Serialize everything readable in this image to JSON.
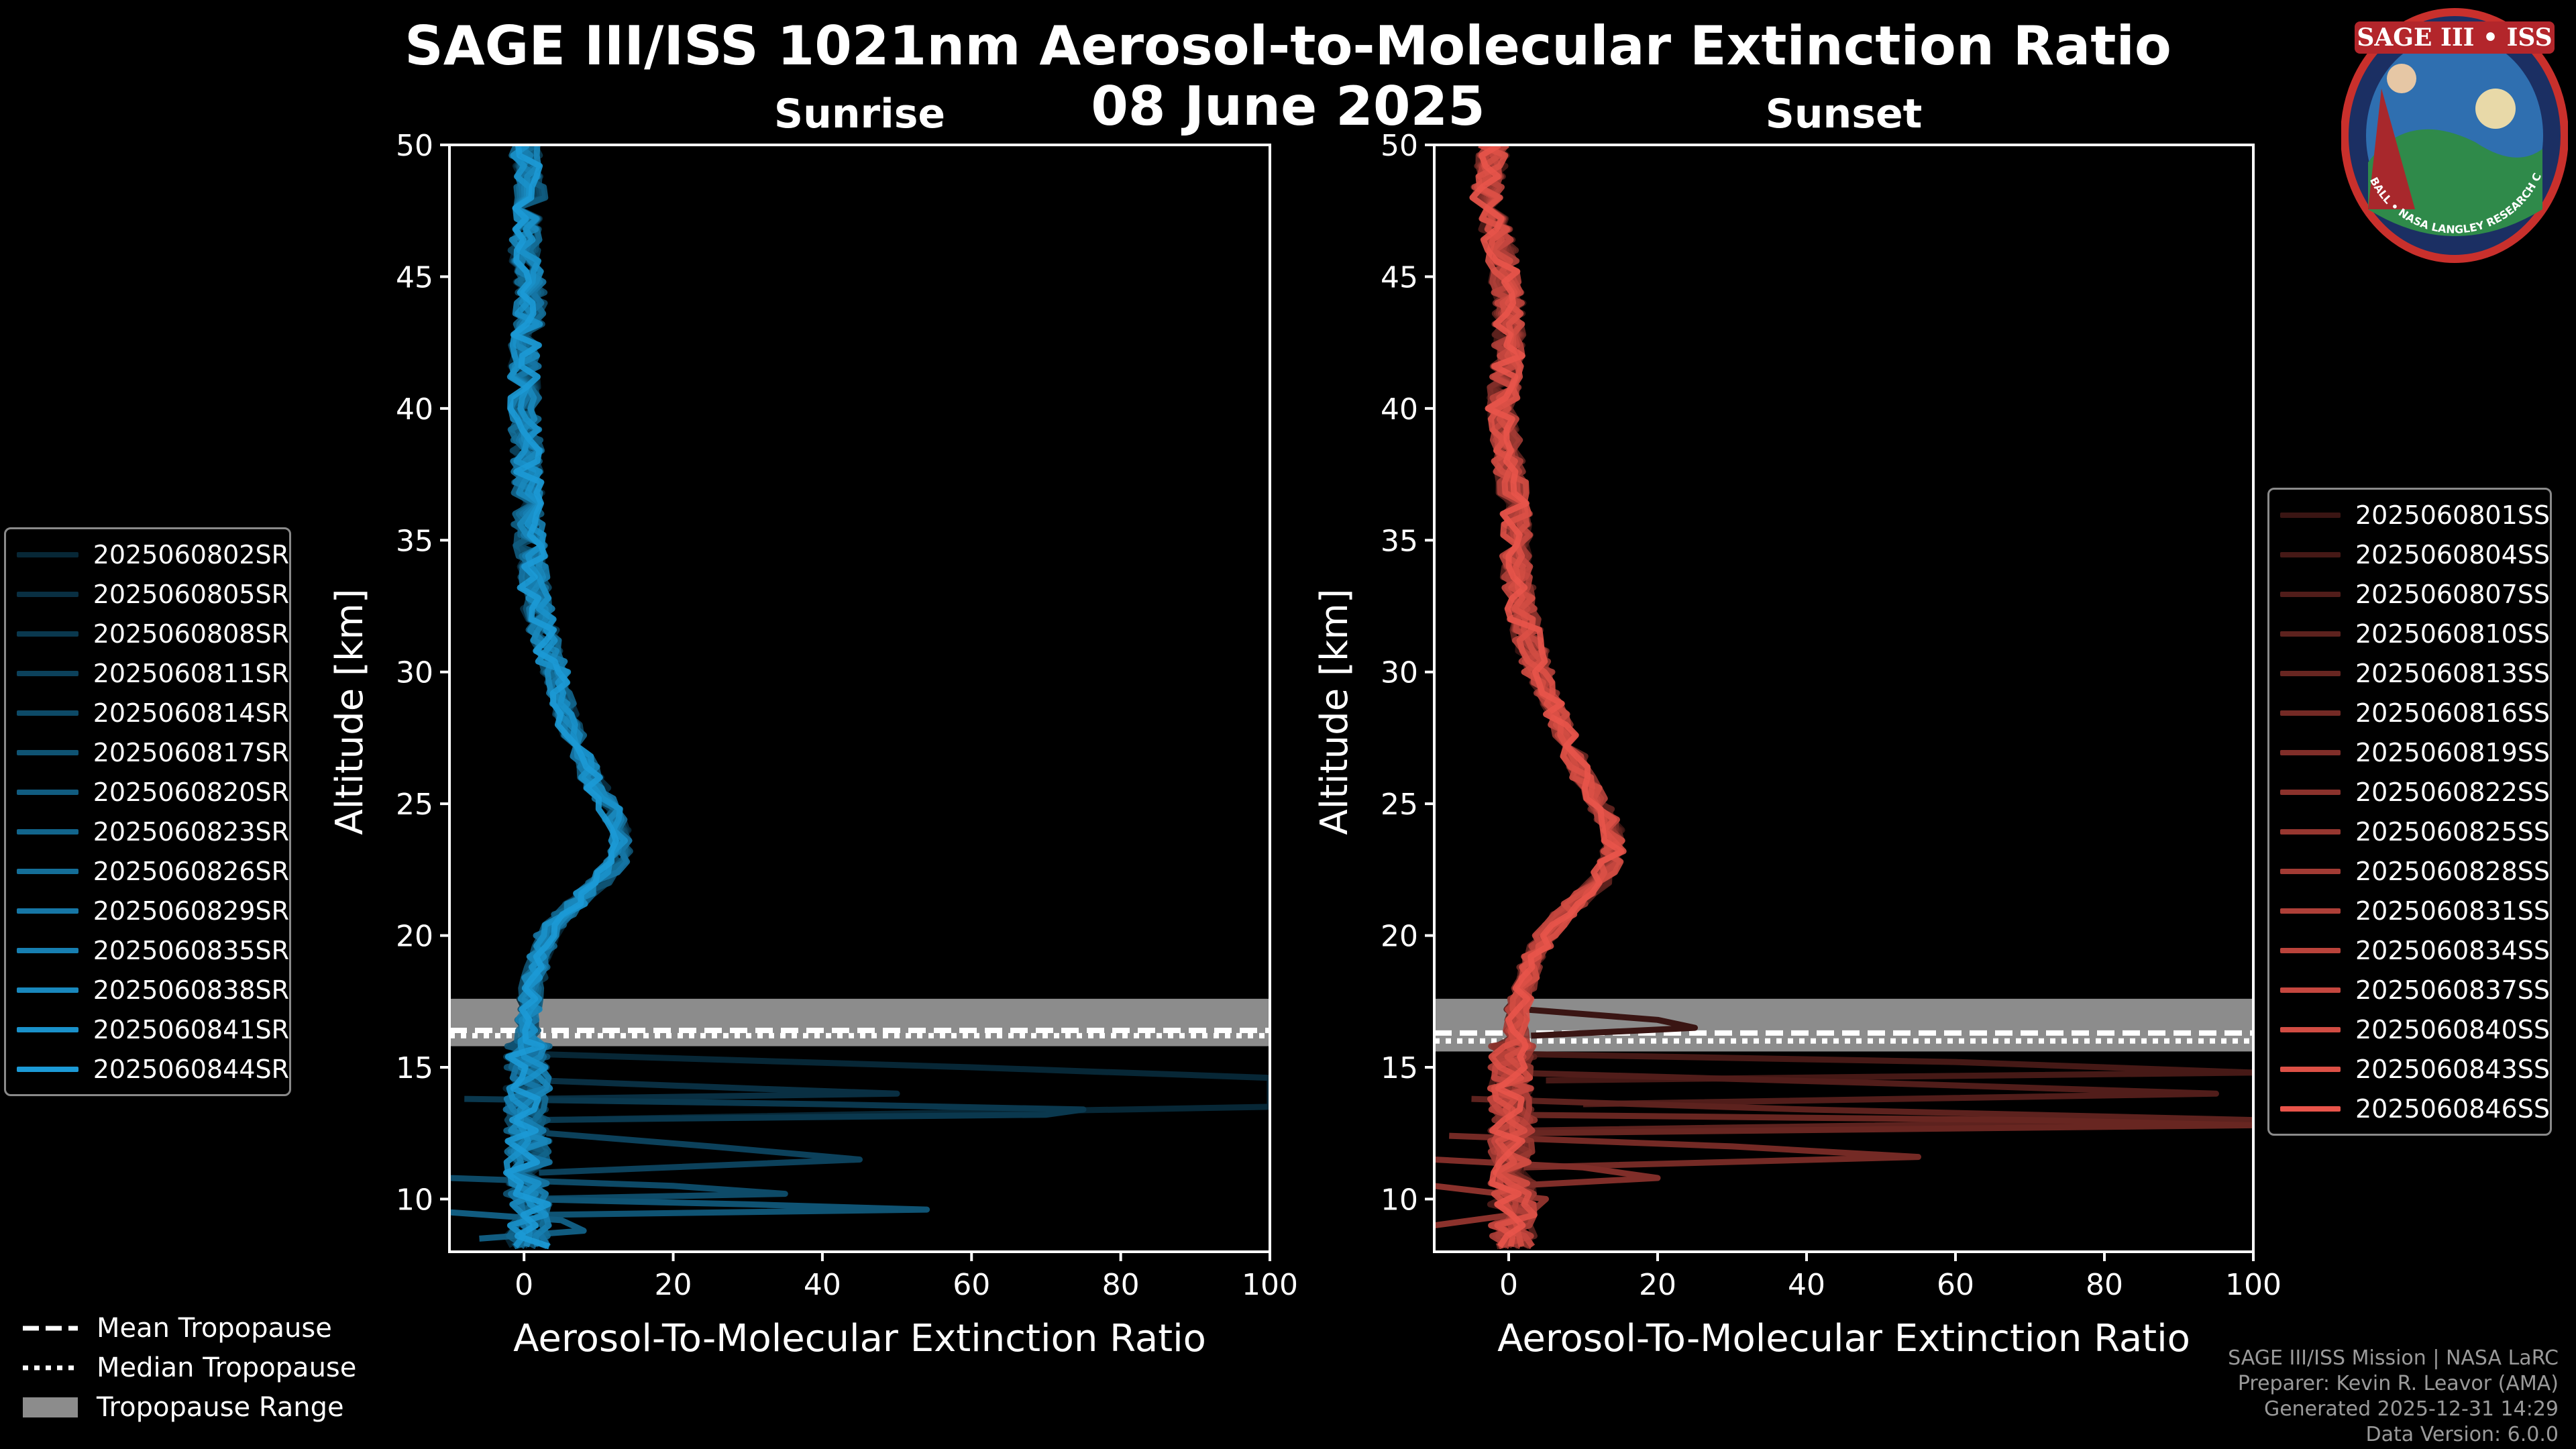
{
  "header": {
    "title": "SAGE III/ISS 1021nm Aerosol-to-Molecular Extinction Ratio",
    "date": "08 June 2025"
  },
  "colors": {
    "sunrise": "#1c9ad6",
    "sunset": "#e8544a",
    "tropopause_band": "#8c8c8c"
  },
  "chart_data": [
    {
      "type": "line",
      "name": "Sunrise",
      "title": "Sunrise",
      "xlabel": "Aerosol-To-Molecular Extinction Ratio",
      "ylabel": "Altitude [km]",
      "xlim": [
        -10,
        100
      ],
      "ylim": [
        8,
        50
      ],
      "xticks": [
        0,
        20,
        40,
        60,
        80,
        100
      ],
      "yticks": [
        10,
        15,
        20,
        25,
        30,
        35,
        40,
        45,
        50
      ],
      "tropopause": {
        "mean": 16.4,
        "median": 16.2,
        "range": [
          15.8,
          17.6
        ]
      },
      "series": [
        {
          "name": "2025060802SR"
        },
        {
          "name": "2025060805SR"
        },
        {
          "name": "2025060808SR"
        },
        {
          "name": "2025060811SR"
        },
        {
          "name": "2025060814SR"
        },
        {
          "name": "2025060817SR"
        },
        {
          "name": "2025060820SR"
        },
        {
          "name": "2025060823SR"
        },
        {
          "name": "2025060826SR"
        },
        {
          "name": "2025060829SR"
        },
        {
          "name": "2025060835SR"
        },
        {
          "name": "2025060838SR"
        },
        {
          "name": "2025060841SR"
        },
        {
          "name": "2025060844SR"
        }
      ],
      "profile": {
        "altitude": [
          50,
          48,
          46,
          44,
          42,
          40,
          38,
          36,
          34,
          32,
          30,
          28,
          26,
          25,
          24,
          23,
          22,
          21,
          20,
          19,
          18,
          17,
          16
        ],
        "ratio": [
          0,
          1,
          0,
          1,
          0,
          0,
          0.5,
          0.5,
          1,
          2,
          4,
          6,
          9,
          11,
          13,
          13,
          10,
          6,
          3,
          2,
          1,
          0.5,
          0.5
        ]
      },
      "spikes": [
        {
          "alt": [
            15.5,
            15.0,
            14.6,
            14.0,
            13.5,
            13.0
          ],
          "x": [
            2,
            60,
            100,
            100,
            100,
            3
          ]
        },
        {
          "alt": [
            14.5,
            14.2,
            14.0,
            13.8
          ],
          "x": [
            2,
            30,
            50,
            1
          ]
        },
        {
          "alt": [
            13.8,
            13.6,
            13.4,
            13.2,
            13.0
          ],
          "x": [
            -8,
            40,
            75,
            70,
            1
          ]
        },
        {
          "alt": [
            12.5,
            12.0,
            11.5,
            11.0
          ],
          "x": [
            3,
            25,
            45,
            2
          ]
        },
        {
          "alt": [
            10.8,
            10.5,
            10.2,
            10.0
          ],
          "x": [
            -10,
            20,
            35,
            0
          ]
        },
        {
          "alt": [
            10.0,
            9.8,
            9.6,
            9.4
          ],
          "x": [
            0,
            30,
            54,
            2
          ]
        },
        {
          "alt": [
            9.5,
            9.2,
            8.8,
            8.5
          ],
          "x": [
            -10,
            5,
            8,
            -6
          ]
        }
      ]
    },
    {
      "type": "line",
      "name": "Sunset",
      "title": "Sunset",
      "xlabel": "Aerosol-To-Molecular Extinction Ratio",
      "ylabel": "Altitude [km]",
      "xlim": [
        -10,
        100
      ],
      "ylim": [
        8,
        50
      ],
      "xticks": [
        0,
        20,
        40,
        60,
        80,
        100
      ],
      "yticks": [
        10,
        15,
        20,
        25,
        30,
        35,
        40,
        45,
        50
      ],
      "tropopause": {
        "mean": 16.3,
        "median": 16.0,
        "range": [
          15.6,
          17.6
        ]
      },
      "series": [
        {
          "name": "2025060801SS"
        },
        {
          "name": "2025060804SS"
        },
        {
          "name": "2025060807SS"
        },
        {
          "name": "2025060810SS"
        },
        {
          "name": "2025060813SS"
        },
        {
          "name": "2025060816SS"
        },
        {
          "name": "2025060819SS"
        },
        {
          "name": "2025060822SS"
        },
        {
          "name": "2025060825SS"
        },
        {
          "name": "2025060828SS"
        },
        {
          "name": "2025060831SS"
        },
        {
          "name": "2025060834SS"
        },
        {
          "name": "2025060837SS"
        },
        {
          "name": "2025060840SS"
        },
        {
          "name": "2025060843SS"
        },
        {
          "name": "2025060846SS"
        }
      ],
      "profile": {
        "altitude": [
          50,
          48,
          46,
          44,
          42,
          40,
          38,
          36,
          34,
          32,
          30,
          28,
          26,
          25,
          24,
          23,
          22,
          21,
          20,
          19,
          18,
          17,
          16
        ],
        "ratio": [
          -2,
          -3,
          -1,
          0,
          0,
          -1,
          0,
          1,
          1,
          2,
          4,
          7,
          10,
          12,
          14,
          14,
          12,
          8,
          5,
          3,
          2,
          1,
          1
        ]
      },
      "spikes": [
        {
          "alt": [
            17.2,
            16.8,
            16.5,
            16.2
          ],
          "x": [
            2,
            20,
            25,
            3
          ]
        },
        {
          "alt": [
            15.5,
            15.2,
            14.8,
            14.5
          ],
          "x": [
            2,
            60,
            100,
            5
          ]
        },
        {
          "alt": [
            14.8,
            14.4,
            14.0,
            13.6
          ],
          "x": [
            0,
            50,
            95,
            10
          ]
        },
        {
          "alt": [
            13.8,
            13.4,
            13.0,
            12.6
          ],
          "x": [
            -5,
            40,
            100,
            2
          ]
        },
        {
          "alt": [
            13.2,
            13.0,
            12.8,
            12.5
          ],
          "x": [
            0,
            70,
            100,
            2
          ]
        },
        {
          "alt": [
            12.4,
            12.0,
            11.6,
            11.2
          ],
          "x": [
            -8,
            30,
            55,
            2
          ]
        },
        {
          "alt": [
            11.5,
            11.2,
            10.8,
            10.5
          ],
          "x": [
            -10,
            10,
            20,
            0
          ]
        },
        {
          "alt": [
            10.5,
            10.0,
            9.5,
            9.0
          ],
          "x": [
            -10,
            5,
            3,
            -10
          ]
        }
      ]
    }
  ],
  "legend_tropopause": [
    {
      "label": "Mean Tropopause",
      "style": "dashed"
    },
    {
      "label": "Median Tropopause",
      "style": "dotted"
    },
    {
      "label": "Tropopause Range",
      "style": "band"
    }
  ],
  "footer": {
    "line1": "SAGE III/ISS Mission | NASA LaRC",
    "line2": "Preparer: Kevin R. Leavor (AMA)",
    "line3": "Generated 2025-12-31 14:29",
    "line4": "Data Version: 6.0.0"
  },
  "logo": {
    "name": "SAGE III • ISS",
    "ring_text": "BALL • NASA LANGLEY RESEARCH CENTER • TAS-I • ESA"
  }
}
